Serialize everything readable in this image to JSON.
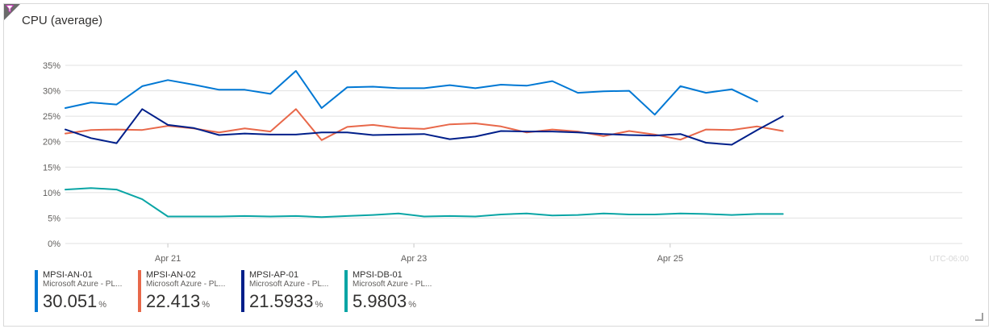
{
  "tile": {
    "title": "CPU (average)"
  },
  "colors": {
    "filter_corner": "#6b6b6b",
    "filter_icon": "#c239b3"
  },
  "chart_data": {
    "type": "line",
    "title": "CPU (average)",
    "y_ticks": [
      "35%",
      "30%",
      "25%",
      "20%",
      "15%",
      "10%",
      "5%",
      "0%"
    ],
    "ylim": [
      0,
      35
    ],
    "x_ticks": [
      {
        "label": "Apr 21",
        "x": 4.0
      },
      {
        "label": "Apr 23",
        "x": 13.6
      },
      {
        "label": "Apr 25",
        "x": 23.6
      }
    ],
    "timezone_label": "UTC-06:00",
    "x_range": [
      0,
      35
    ],
    "grid": true,
    "series": [
      {
        "name": "MPSI-AN-01",
        "color": "#0078d4",
        "values": [
          26.6,
          27.7,
          27.3,
          30.9,
          32.1,
          31.2,
          30.2,
          30.2,
          29.4,
          33.9,
          26.6,
          30.7,
          30.8,
          30.5,
          30.5,
          31.1,
          30.5,
          31.2,
          31.0,
          31.9,
          29.6,
          29.9,
          30.0,
          25.3,
          30.9,
          29.6,
          30.3,
          27.9
        ],
        "x": [
          0,
          1,
          2,
          3,
          4,
          5,
          6,
          7,
          8,
          9,
          10,
          11,
          12,
          13,
          14,
          15,
          16,
          17,
          18,
          19,
          20,
          21,
          22,
          23,
          24,
          25,
          26,
          27
        ]
      },
      {
        "name": "MPSI-AN-02",
        "color": "#e8684a",
        "values": [
          21.6,
          22.3,
          22.4,
          22.3,
          23.1,
          22.6,
          21.8,
          22.6,
          22.0,
          26.4,
          20.3,
          22.9,
          23.3,
          22.7,
          22.5,
          23.4,
          23.6,
          23.0,
          21.8,
          22.4,
          22.0,
          21.1,
          22.1,
          21.4,
          20.4,
          22.4,
          22.3,
          23.0,
          22.1
        ],
        "x": [
          0,
          1,
          2,
          3,
          4,
          5,
          6,
          7,
          8,
          9,
          10,
          11,
          12,
          13,
          14,
          15,
          16,
          17,
          18,
          19,
          20,
          21,
          22,
          23,
          24,
          25,
          26,
          27,
          28
        ]
      },
      {
        "name": "MPSI-AP-01",
        "color": "#001f8a",
        "values": [
          22.4,
          20.7,
          19.7,
          26.4,
          23.3,
          22.7,
          21.3,
          21.6,
          21.4,
          21.4,
          21.8,
          21.8,
          21.3,
          21.4,
          21.5,
          20.5,
          21.0,
          22.1,
          22.0,
          22.0,
          21.8,
          21.5,
          21.3,
          21.2,
          21.5,
          19.8,
          19.4,
          22.3,
          25.0
        ],
        "x": [
          0,
          1,
          2,
          3,
          4,
          5,
          6,
          7,
          8,
          9,
          10,
          11,
          12,
          13,
          14,
          15,
          16,
          17,
          18,
          19,
          20,
          21,
          22,
          23,
          24,
          25,
          26,
          27,
          28
        ]
      },
      {
        "name": "MPSI-DB-01",
        "color": "#0aa5a5",
        "values": [
          10.6,
          10.9,
          10.6,
          8.7,
          5.3,
          5.3,
          5.3,
          5.4,
          5.3,
          5.4,
          5.2,
          5.4,
          5.6,
          5.9,
          5.3,
          5.4,
          5.3,
          5.7,
          5.9,
          5.5,
          5.6,
          5.9,
          5.7,
          5.7,
          5.9,
          5.8,
          5.6,
          5.8,
          5.8
        ],
        "x": [
          0,
          1,
          2,
          3,
          4,
          5,
          6,
          7,
          8,
          9,
          10,
          11,
          12,
          13,
          14,
          15,
          16,
          17,
          18,
          19,
          20,
          21,
          22,
          23,
          24,
          25,
          26,
          27,
          28
        ]
      }
    ]
  },
  "legend": [
    {
      "name": "MPSI-AN-01",
      "sub": "Microsoft Azure - PL...",
      "value": "30.051",
      "unit": "%",
      "color": "#0078d4"
    },
    {
      "name": "MPSI-AN-02",
      "sub": "Microsoft Azure - PL...",
      "value": "22.413",
      "unit": "%",
      "color": "#e8684a"
    },
    {
      "name": "MPSI-AP-01",
      "sub": "Microsoft Azure - PL...",
      "value": "21.5933",
      "unit": "%",
      "color": "#001f8a"
    },
    {
      "name": "MPSI-DB-01",
      "sub": "Microsoft Azure - PL...",
      "value": "5.9803",
      "unit": "%",
      "color": "#0aa5a5"
    }
  ]
}
